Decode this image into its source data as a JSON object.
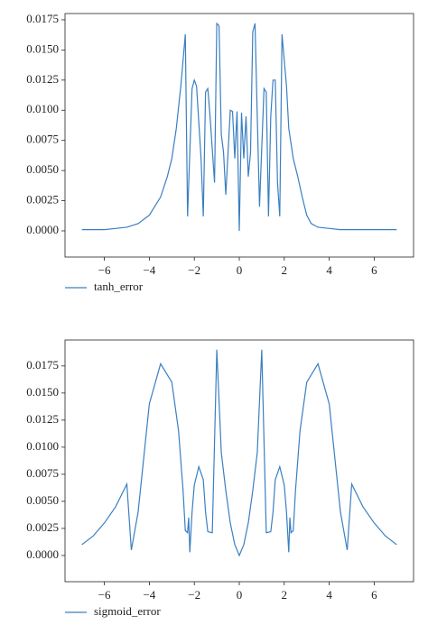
{
  "chart_data": [
    {
      "type": "line",
      "x": [
        -7,
        -6.5,
        -6,
        -5.5,
        -5,
        -4.5,
        -4,
        -3.5,
        -3.2,
        -3,
        -2.8,
        -2.6,
        -2.4,
        -2.3,
        -2.1,
        -2,
        -1.9,
        -1.7,
        -1.6,
        -1.5,
        -1.4,
        -1.3,
        -1.1,
        -1,
        -0.9,
        -0.8,
        -0.7,
        -0.6,
        -0.4,
        -0.3,
        -0.2,
        -0.1,
        0,
        0.1,
        0.2,
        0.3,
        0.4,
        0.5,
        0.6,
        0.7,
        0.8,
        0.9,
        1.1,
        1.2,
        1.3,
        1.4,
        1.5,
        1.6,
        1.7,
        1.8,
        1.9,
        2.1,
        2.2,
        2.4,
        2.6,
        2.8,
        3,
        3.2,
        3.5,
        4,
        4.5,
        5,
        5.5,
        6,
        6.5,
        7
      ],
      "series": [
        {
          "name": "tanh_error",
          "color": "#3a7fc1",
          "values": [
            0.0001,
            0.0001,
            0.0001,
            0.0002,
            0.0003,
            0.0006,
            0.0013,
            0.0028,
            0.0045,
            0.006,
            0.0085,
            0.012,
            0.0163,
            0.0012,
            0.0118,
            0.0125,
            0.012,
            0.006,
            0.0012,
            0.0115,
            0.0118,
            0.0095,
            0.004,
            0.0172,
            0.017,
            0.008,
            0.0065,
            0.003,
            0.01,
            0.0099,
            0.006,
            0.0099,
            0,
            0.0098,
            0.006,
            0.0095,
            0.0045,
            0.0065,
            0.0165,
            0.0172,
            0.0095,
            0.002,
            0.0118,
            0.0115,
            0.0012,
            0.0095,
            0.0125,
            0.0125,
            0.004,
            0.0012,
            0.0163,
            0.012,
            0.0085,
            0.006,
            0.0045,
            0.0028,
            0.0013,
            0.0006,
            0.0003,
            0.0002,
            0.0001,
            0.0001,
            0.0001,
            0.0001,
            0.0001,
            0.0001
          ]
        }
      ],
      "xlim": [
        -7.75,
        7.75
      ],
      "ylim": [
        -0.00217,
        0.01802
      ],
      "xticks": [
        {
          "value": -6,
          "label": "−6"
        },
        {
          "value": -4,
          "label": "−4"
        },
        {
          "value": -2,
          "label": "−2"
        },
        0,
        2,
        4,
        6
      ],
      "yticks": [
        {
          "value": 0,
          "label": "0.0000"
        },
        {
          "value": 0.0025,
          "label": "0.0025"
        },
        {
          "value": 0.005,
          "label": "0.0050"
        },
        {
          "value": 0.0075,
          "label": "0.0075"
        },
        {
          "value": 0.01,
          "label": "0.0100"
        },
        {
          "value": 0.0125,
          "label": "0.0125"
        },
        {
          "value": 0.015,
          "label": "0.0150"
        },
        {
          "value": 0.0175,
          "label": "0.0175"
        }
      ]
    },
    {
      "type": "line",
      "x": [
        -7,
        -6.5,
        -6,
        -5.5,
        -5,
        -4.8,
        -4.5,
        -4.3,
        -4,
        -3.5,
        -3,
        -2.7,
        -2.5,
        -2.4,
        -2.3,
        -2.25,
        -2.2,
        -2.1,
        -2,
        -1.8,
        -1.6,
        -1.5,
        -1.4,
        -1.2,
        -1,
        -0.8,
        -0.6,
        -0.4,
        -0.2,
        0,
        0.2,
        0.4,
        0.6,
        0.8,
        1,
        1.2,
        1.4,
        1.5,
        1.6,
        1.8,
        2,
        2.1,
        2.2,
        2.25,
        2.3,
        2.4,
        2.5,
        2.7,
        3,
        3.5,
        4,
        4.3,
        4.5,
        4.8,
        5,
        5.5,
        6,
        6.5,
        7
      ],
      "series": [
        {
          "name": "sigmoid_error",
          "color": "#3a7fc1",
          "values": [
            0.001,
            0.0018,
            0.003,
            0.0045,
            0.0066,
            0.0005,
            0.004,
            0.008,
            0.014,
            0.0177,
            0.016,
            0.0115,
            0.006,
            0.0023,
            0.0021,
            0.0035,
            0.0003,
            0.004,
            0.0065,
            0.0082,
            0.007,
            0.004,
            0.0022,
            0.0021,
            0.019,
            0.0095,
            0.006,
            0.003,
            0.001,
            0,
            0.001,
            0.003,
            0.006,
            0.0095,
            0.019,
            0.0021,
            0.0022,
            0.004,
            0.007,
            0.0082,
            0.0065,
            0.004,
            0.0003,
            0.0035,
            0.0021,
            0.0023,
            0.006,
            0.0115,
            0.016,
            0.0177,
            0.014,
            0.008,
            0.004,
            0.0005,
            0.0066,
            0.0045,
            0.003,
            0.0018,
            0.001
          ]
        }
      ],
      "xlim": [
        -7.75,
        7.75
      ],
      "ylim": [
        -0.00242,
        0.0199
      ],
      "xticks": [
        {
          "value": -6,
          "label": "−6"
        },
        {
          "value": -4,
          "label": "−4"
        },
        {
          "value": -2,
          "label": "−2"
        },
        0,
        2,
        4,
        6
      ],
      "yticks": [
        {
          "value": 0,
          "label": "0.0000"
        },
        {
          "value": 0.0025,
          "label": "0.0025"
        },
        {
          "value": 0.005,
          "label": "0.0050"
        },
        {
          "value": 0.0075,
          "label": "0.0075"
        },
        {
          "value": 0.01,
          "label": "0.0100"
        },
        {
          "value": 0.0125,
          "label": "0.0125"
        },
        {
          "value": 0.015,
          "label": "0.0150"
        },
        {
          "value": 0.0175,
          "label": "0.0175"
        }
      ]
    }
  ]
}
